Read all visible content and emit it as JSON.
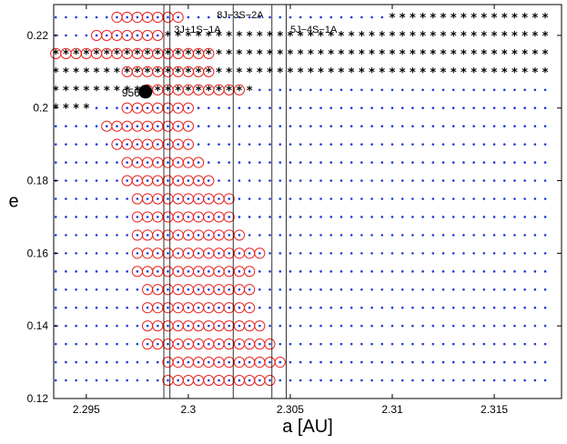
{
  "chart_data": {
    "type": "scatter",
    "xlabel": "a [AU]",
    "ylabel": "e",
    "xlim": [
      2.2934,
      2.3183
    ],
    "ylim": [
      0.12,
      0.2285
    ],
    "xticks": [
      2.295,
      2.3,
      2.305,
      2.31,
      2.315
    ],
    "xtick_labels": [
      "2.295",
      "2.3",
      "2.305",
      "2.31",
      "2.315"
    ],
    "yticks": [
      0.12,
      0.14,
      0.16,
      0.18,
      0.2,
      0.22
    ],
    "ytick_labels": [
      "0.12",
      "0.14",
      "0.16",
      "0.18",
      "0.2",
      "0.22"
    ],
    "grid": false,
    "colors": {
      "grid_points": "#1f3bd6",
      "circles": "#e8231f",
      "stars": "#000000",
      "lines": "#000000",
      "marker": "#000000"
    },
    "grid_points": {
      "a_start": 2.2935,
      "a_step": 0.0005,
      "a_count": 49,
      "e_start": 0.125,
      "e_step": 0.005,
      "e_count": 21
    },
    "resonances": [
      {
        "label": "3J+1S−1A",
        "a": [
          2.2988,
          2.2991
        ]
      },
      {
        "label": "8J−3S−2A",
        "a": [
          2.3022
        ]
      },
      {
        "label": "5J−4S−1A",
        "a": [
          2.3041,
          2.3048
        ]
      }
    ],
    "circle_rows": [
      {
        "e": 0.125,
        "a_min": 2.299,
        "a_max": 2.304
      },
      {
        "e": 0.13,
        "a_min": 2.299,
        "a_max": 2.3045
      },
      {
        "e": 0.135,
        "a_min": 2.298,
        "a_max": 2.304
      },
      {
        "e": 0.14,
        "a_min": 2.298,
        "a_max": 2.3035
      },
      {
        "e": 0.145,
        "a_min": 2.298,
        "a_max": 2.303
      },
      {
        "e": 0.15,
        "a_min": 2.298,
        "a_max": 2.303
      },
      {
        "e": 0.155,
        "a_min": 2.2975,
        "a_max": 2.303
      },
      {
        "e": 0.16,
        "a_min": 2.2975,
        "a_max": 2.3035
      },
      {
        "e": 0.165,
        "a_min": 2.2975,
        "a_max": 2.3025
      },
      {
        "e": 0.17,
        "a_min": 2.2975,
        "a_max": 2.302
      },
      {
        "e": 0.175,
        "a_min": 2.2975,
        "a_max": 2.302
      },
      {
        "e": 0.18,
        "a_min": 2.297,
        "a_max": 2.301
      },
      {
        "e": 0.185,
        "a_min": 2.297,
        "a_max": 2.3005
      },
      {
        "e": 0.19,
        "a_min": 2.2965,
        "a_max": 2.3
      },
      {
        "e": 0.195,
        "a_min": 2.296,
        "a_max": 2.3
      },
      {
        "e": 0.2,
        "a_min": 2.297,
        "a_max": 2.3
      },
      {
        "e": 0.215,
        "a_min": 2.2935,
        "a_max": 2.301
      },
      {
        "e": 0.22,
        "a_min": 2.2955,
        "a_max": 2.2985
      },
      {
        "e": 0.225,
        "a_min": 2.2965,
        "a_max": 2.2995
      }
    ],
    "circle_segments_with_stars": [
      {
        "e": 0.205,
        "a_min": 2.298,
        "a_max": 2.3025
      },
      {
        "e": 0.21,
        "a_min": 2.297,
        "a_max": 2.301
      }
    ],
    "star_rows": [
      {
        "e": 0.2,
        "a_min": 2.2935,
        "a_max": 2.295
      },
      {
        "e": 0.205,
        "a_min": 2.2935,
        "a_max": 2.303
      },
      {
        "e": 0.21,
        "a_min": 2.2935,
        "a_max": 2.318
      },
      {
        "e": 0.215,
        "a_min": 2.2935,
        "a_max": 2.318
      },
      {
        "e": 0.22,
        "a_min": 2.299,
        "a_max": 2.318
      },
      {
        "e": 0.225,
        "a_min": 2.31,
        "a_max": 2.318
      }
    ],
    "highlight": {
      "label": "956",
      "a": 2.2979,
      "e": 0.2045
    }
  }
}
